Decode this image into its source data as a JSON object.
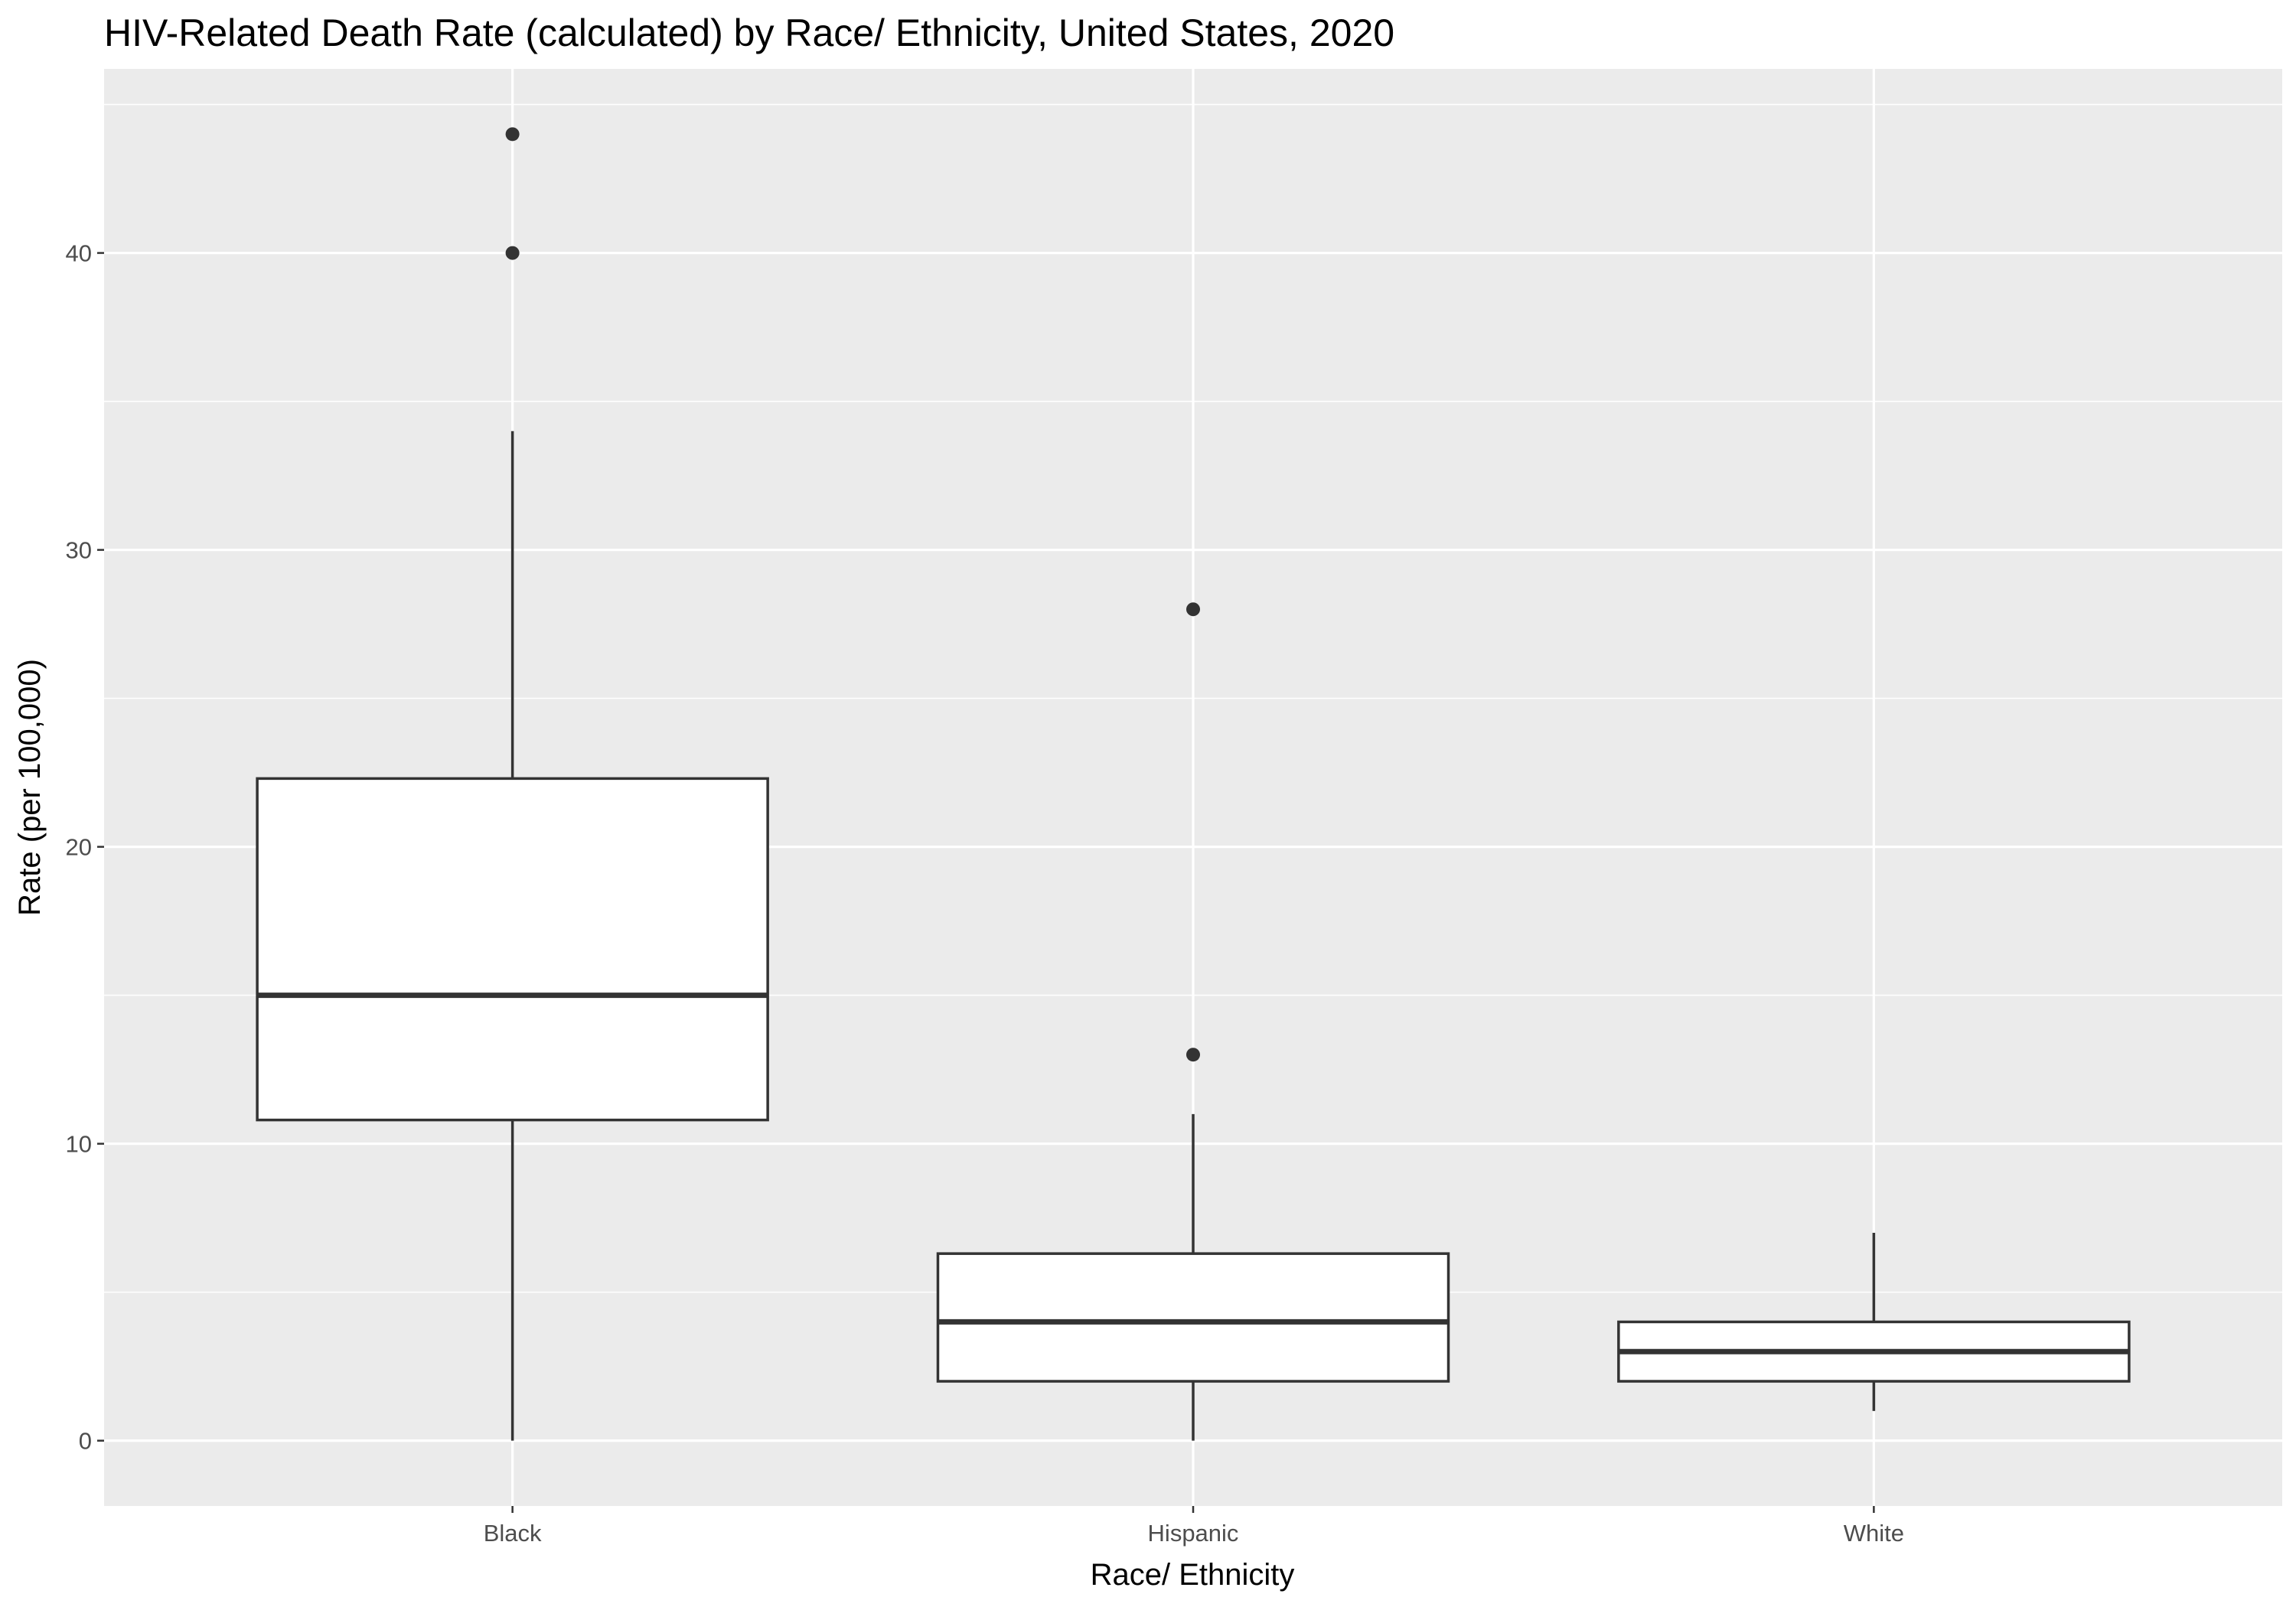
{
  "chart_data": {
    "type": "boxplot",
    "title": "HIV-Related Death Rate (calculated) by Race/ Ethnicity, United States, 2020",
    "xlabel": "Race/ Ethnicity",
    "ylabel": "Rate (per 100,000)",
    "categories": [
      "Black",
      "Hispanic",
      "White"
    ],
    "y_ticks": [
      "0",
      "10",
      "20",
      "30",
      "40"
    ],
    "ylim": [
      -2.2,
      46.2
    ],
    "grid": true,
    "boxes": [
      {
        "category": "Black",
        "whisker_low": 0,
        "q1": 10.8,
        "median": 15,
        "q3": 22.3,
        "whisker_high": 34,
        "outliers": [
          40,
          44
        ]
      },
      {
        "category": "Hispanic",
        "whisker_low": 0,
        "q1": 2,
        "median": 4,
        "q3": 6.3,
        "whisker_high": 11,
        "outliers": [
          13,
          28
        ]
      },
      {
        "category": "White",
        "whisker_low": 1,
        "q1": 2,
        "median": 3,
        "q3": 4,
        "whisker_high": 7,
        "outliers": []
      }
    ],
    "colors": {
      "panel": "#ebebeb",
      "grid": "#ffffff",
      "box_line": "#333333",
      "box_fill": "#ffffff",
      "tick_text": "#4d4d4d"
    }
  }
}
